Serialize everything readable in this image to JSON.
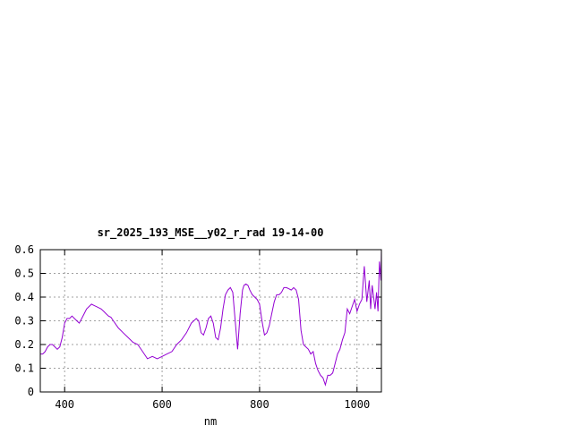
{
  "chart_data": {
    "type": "line",
    "title": "sr_2025_193_MSE__y02_r_rad 19-14-00",
    "xlabel": "nm",
    "ylabel": "",
    "xlim": [
      350,
      1050
    ],
    "ylim": [
      0,
      0.6
    ],
    "x_ticks": [
      400,
      600,
      800,
      1000
    ],
    "y_ticks": [
      0,
      0.1,
      0.2,
      0.3,
      0.4,
      0.5,
      0.6
    ],
    "y_tick_labels": [
      "0",
      "0.1",
      "0.2",
      "0.3",
      "0.4",
      "0.5",
      "0.6"
    ],
    "grid": true,
    "series_color": "#9400d3",
    "series": [
      {
        "x": [
          350,
          355,
          360,
          365,
          370,
          375,
          380,
          385,
          390,
          395,
          400,
          405,
          410,
          415,
          420,
          425,
          430,
          435,
          440,
          445,
          450,
          455,
          460,
          465,
          470,
          475,
          480,
          485,
          490,
          495,
          500,
          510,
          520,
          530,
          540,
          550,
          560,
          570,
          580,
          590,
          600,
          610,
          620,
          630,
          640,
          650,
          660,
          670,
          675,
          680,
          685,
          690,
          695,
          700,
          705,
          710,
          715,
          720,
          725,
          730,
          735,
          740,
          745,
          750,
          755,
          760,
          765,
          768,
          772,
          776,
          780,
          785,
          790,
          795,
          800,
          805,
          810,
          815,
          820,
          825,
          830,
          835,
          840,
          845,
          850,
          855,
          860,
          865,
          870,
          875,
          880,
          885,
          890,
          895,
          900,
          905,
          910,
          915,
          920,
          925,
          930,
          935,
          940,
          945,
          950,
          955,
          960,
          965,
          970,
          975,
          980,
          985,
          990,
          995,
          1000,
          1005,
          1010,
          1015,
          1020,
          1025,
          1028,
          1031,
          1034,
          1037,
          1040,
          1043,
          1046,
          1049,
          1050
        ],
        "values": [
          0.16,
          0.16,
          0.17,
          0.19,
          0.2,
          0.2,
          0.19,
          0.18,
          0.19,
          0.23,
          0.29,
          0.31,
          0.31,
          0.32,
          0.31,
          0.3,
          0.29,
          0.31,
          0.33,
          0.35,
          0.36,
          0.37,
          0.365,
          0.36,
          0.355,
          0.35,
          0.34,
          0.33,
          0.32,
          0.315,
          0.3,
          0.27,
          0.25,
          0.23,
          0.21,
          0.2,
          0.17,
          0.14,
          0.15,
          0.14,
          0.15,
          0.16,
          0.17,
          0.2,
          0.22,
          0.25,
          0.29,
          0.31,
          0.3,
          0.25,
          0.24,
          0.27,
          0.31,
          0.32,
          0.29,
          0.23,
          0.22,
          0.27,
          0.35,
          0.41,
          0.43,
          0.44,
          0.42,
          0.3,
          0.18,
          0.33,
          0.43,
          0.45,
          0.455,
          0.45,
          0.43,
          0.41,
          0.4,
          0.39,
          0.37,
          0.3,
          0.24,
          0.25,
          0.28,
          0.33,
          0.38,
          0.41,
          0.41,
          0.42,
          0.44,
          0.44,
          0.435,
          0.43,
          0.44,
          0.43,
          0.39,
          0.26,
          0.2,
          0.19,
          0.18,
          0.16,
          0.17,
          0.12,
          0.09,
          0.07,
          0.06,
          0.03,
          0.07,
          0.07,
          0.08,
          0.12,
          0.16,
          0.18,
          0.22,
          0.25,
          0.35,
          0.33,
          0.36,
          0.39,
          0.34,
          0.37,
          0.39,
          0.53,
          0.38,
          0.47,
          0.35,
          0.45,
          0.4,
          0.35,
          0.42,
          0.34,
          0.55,
          0.47,
          0.6
        ]
      }
    ]
  }
}
